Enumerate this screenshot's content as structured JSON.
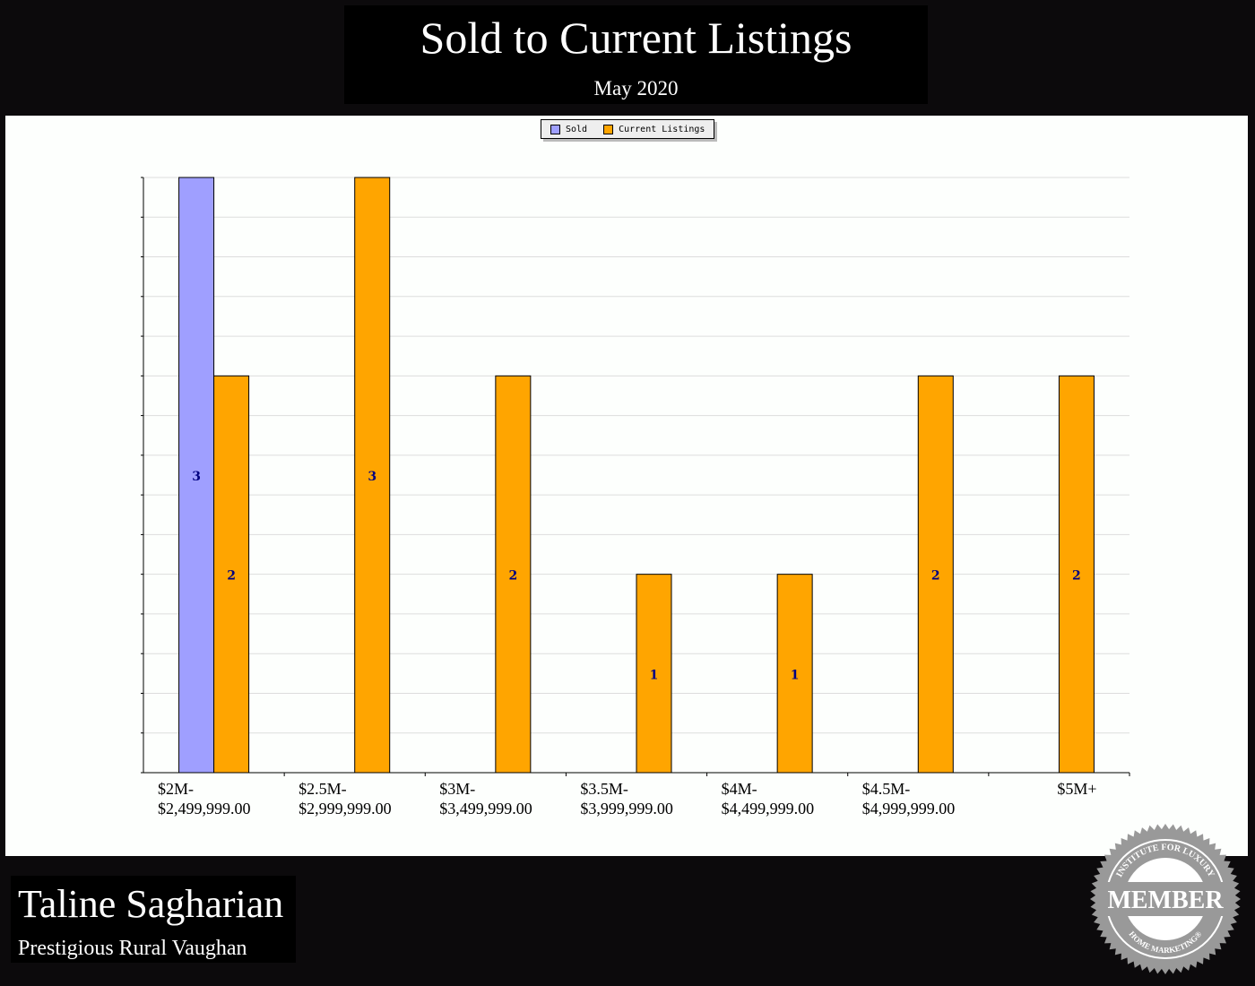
{
  "header": {
    "title": "Sold to Current Listings",
    "subtitle": "May 2020"
  },
  "footer": {
    "agent_name": "Taline Sagharian",
    "brokerage": "Prestigious Rural Vaughan"
  },
  "badge": {
    "top_text": "INSTITUTE FOR LUXURY",
    "center_text": "MEMBER",
    "bottom_text": "HOME MARKETING®"
  },
  "chart_data": {
    "type": "bar",
    "title": "Sold to Current Listings",
    "subtitle": "May 2020",
    "categories": [
      [
        "$2M-",
        "$2,499,999.00"
      ],
      [
        "$2.5M-",
        "$2,999,999.00"
      ],
      [
        "$3M-",
        "$3,499,999.00"
      ],
      [
        "$3.5M-",
        "$3,999,999.00"
      ],
      [
        "$4M-",
        "$4,499,999.00"
      ],
      [
        "$4.5M-",
        "$4,999,999.00"
      ],
      [
        "$5M+",
        ""
      ]
    ],
    "series": [
      {
        "name": "Sold",
        "color": "#9f9fff",
        "values": [
          3,
          0,
          0,
          0,
          0,
          0,
          0
        ]
      },
      {
        "name": "Current Listings",
        "color": "#ffa500",
        "values": [
          2,
          3,
          2,
          1,
          1,
          2,
          2
        ]
      }
    ],
    "ylim": [
      0,
      3
    ],
    "grid": true,
    "legend": "top-center",
    "data_label_color": "#000080"
  }
}
